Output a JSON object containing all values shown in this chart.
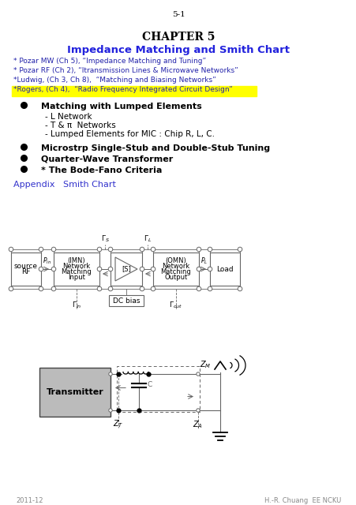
{
  "page_number": "5-1",
  "chapter": "CHAPTER 5",
  "title": "Impedance Matching and Smith Chart",
  "refs": [
    "* Pozar MW (Ch 5), “Impedance Matching and Tuning”",
    "* Pozar RF (Ch 2), “Itransmission Lines & Microwave Networks”",
    "*Ludwig, (Ch 3, Ch 8),  “Matching and Biasing Networks”",
    "*Rogers, (Ch 4),  “Radio Frequency Integrated Circuit Design”"
  ],
  "ref_highlight_index": 3,
  "bullets_bold": [
    "Matching with Lumped Elements",
    "Microstrp Single-Stub and Double-Stub Tuning",
    "Quarter-Wave Transformer",
    "* The Bode-Fano Criteria"
  ],
  "bullets_sub": [
    "- L Network",
    "- T & π  Networks",
    "- Lumped Elements for MIC : Chip R, L, C."
  ],
  "appendix_text": "Appendix   Smith Chart",
  "footer_left": "2011-12",
  "footer_right": "H.-R. Chuang  EE NCKU",
  "bg_color": "#ffffff",
  "text_color": "#000000",
  "blue_color": "#3333cc",
  "title_color": "#2222dd",
  "highlight_color": "#ffff00",
  "ref_color": "#2222aa",
  "gray_box_color": "#bbbbbb",
  "line_color": "#666666"
}
